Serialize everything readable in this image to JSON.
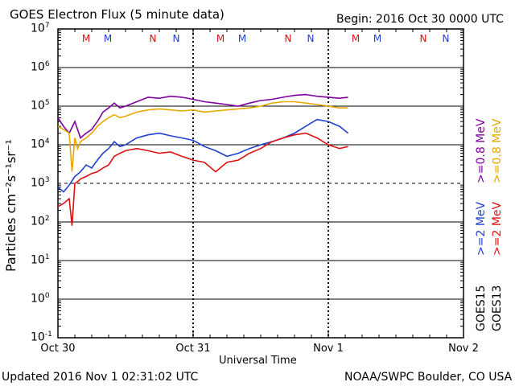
{
  "header": {
    "title": "GOES Electron Flux (5 minute data)",
    "begin": "Begin: 2016 Oct 30 0000 UTC"
  },
  "footer": {
    "updated": "Updated 2016 Nov  1 02:31:02 UTC",
    "credit": "NOAA/SWPC Boulder, CO USA"
  },
  "legend": {
    "goes15": "GOES15",
    "goes13": "GOES13",
    "entries": [
      {
        "text": ">=0.8 MeV",
        "color": "#7f00a0"
      },
      {
        "text": ">=0.8 MeV",
        "color": "#e6a800"
      },
      {
        "text": ">=2 MeV",
        "color": "#1f3fd0"
      },
      {
        "text": ">=2 MeV",
        "color": "#dd1111"
      }
    ]
  },
  "markers": [
    {
      "text": "M",
      "color": "#dd1111"
    },
    {
      "text": "M",
      "color": "#1f3fd0"
    },
    {
      "text": "N",
      "color": "#dd1111"
    },
    {
      "text": "N",
      "color": "#1f3fd0"
    },
    {
      "text": "M",
      "color": "#dd1111"
    },
    {
      "text": "M",
      "color": "#1f3fd0"
    },
    {
      "text": "N",
      "color": "#dd1111"
    },
    {
      "text": "N",
      "color": "#1f3fd0"
    },
    {
      "text": "M",
      "color": "#dd1111"
    },
    {
      "text": "M",
      "color": "#1f3fd0"
    },
    {
      "text": "N",
      "color": "#dd1111"
    },
    {
      "text": "N",
      "color": "#1f3fd0"
    }
  ],
  "chart_data": {
    "type": "line",
    "title": "GOES Electron Flux (5 minute data)",
    "xlabel": "Universal Time",
    "ylabel": "Particles cm⁻²s⁻¹sr⁻¹",
    "y_scale": "log",
    "ylim": [
      0.1,
      10000000
    ],
    "y_ticks": [
      {
        "base": "10",
        "exp": "7"
      },
      {
        "base": "10",
        "exp": "6"
      },
      {
        "base": "10",
        "exp": "5"
      },
      {
        "base": "10",
        "exp": "4"
      },
      {
        "base": "10",
        "exp": "3"
      },
      {
        "base": "10",
        "exp": "2"
      },
      {
        "base": "10",
        "exp": "1"
      },
      {
        "base": "10",
        "exp": "0"
      },
      {
        "base": "10",
        "exp": "-1"
      }
    ],
    "x_ticks": [
      "Oct 30",
      "Oct 31",
      "Nov 1",
      "Nov 2"
    ],
    "xlim_hours": [
      0,
      72
    ],
    "grid": true,
    "series": [
      {
        "name": "GOES15 >=0.8 MeV",
        "color": "#7f00a0",
        "x": [
          0,
          1,
          2,
          3,
          4,
          5,
          6,
          7,
          8,
          9,
          10,
          11,
          12,
          14,
          16,
          18,
          20,
          22,
          24,
          26,
          28,
          30,
          32,
          34,
          36,
          38,
          40,
          42,
          44,
          46,
          48,
          50,
          51.5
        ],
        "y": [
          50000,
          30000,
          20000,
          40000,
          15000,
          20000,
          25000,
          40000,
          70000,
          90000,
          120000,
          90000,
          100000,
          130000,
          170000,
          160000,
          180000,
          170000,
          150000,
          130000,
          120000,
          110000,
          100000,
          120000,
          140000,
          150000,
          170000,
          190000,
          200000,
          180000,
          170000,
          160000,
          170000
        ]
      },
      {
        "name": "GOES13 >=0.8 MeV",
        "color": "#e6a800",
        "x": [
          0,
          1,
          2,
          2.5,
          3,
          3.5,
          4,
          5,
          6,
          7,
          8,
          9,
          10,
          11,
          12,
          14,
          16,
          18,
          20,
          22,
          24,
          26,
          28,
          30,
          32,
          34,
          36,
          38,
          40,
          42,
          44,
          46,
          48,
          50,
          51.5
        ],
        "y": [
          30000,
          25000,
          20000,
          2000,
          15000,
          8000,
          12000,
          15000,
          20000,
          30000,
          40000,
          50000,
          60000,
          50000,
          55000,
          70000,
          80000,
          85000,
          80000,
          75000,
          80000,
          70000,
          75000,
          80000,
          85000,
          90000,
          100000,
          120000,
          130000,
          130000,
          120000,
          110000,
          100000,
          90000,
          90000
        ]
      },
      {
        "name": "GOES15 >=2 MeV",
        "color": "#1f3fd0",
        "x": [
          0,
          1,
          2,
          3,
          4,
          5,
          6,
          7,
          8,
          9,
          10,
          11,
          12,
          14,
          16,
          18,
          20,
          22,
          24,
          26,
          28,
          30,
          32,
          34,
          36,
          38,
          40,
          42,
          44,
          46,
          48,
          50,
          51.5
        ],
        "y": [
          800,
          600,
          900,
          1500,
          2000,
          3000,
          2500,
          4000,
          6000,
          8000,
          12000,
          9000,
          10000,
          15000,
          18000,
          20000,
          17000,
          15000,
          13000,
          9000,
          7000,
          5000,
          6000,
          8000,
          10000,
          12000,
          15000,
          20000,
          30000,
          45000,
          40000,
          30000,
          20000
        ]
      },
      {
        "name": "GOES13 >=2 MeV",
        "color": "#dd1111",
        "x": [
          0,
          1,
          2,
          2.5,
          3,
          3.5,
          4,
          5,
          6,
          7,
          8,
          9,
          10,
          11,
          12,
          14,
          16,
          18,
          20,
          22,
          24,
          26,
          28,
          30,
          32,
          34,
          36,
          38,
          40,
          42,
          44,
          46,
          48,
          50,
          51.5
        ],
        "y": [
          250,
          300,
          400,
          80,
          1000,
          1100,
          1300,
          1500,
          1800,
          2000,
          2500,
          3000,
          5000,
          6000,
          7000,
          8000,
          7000,
          6000,
          6500,
          5000,
          4000,
          3500,
          2000,
          3500,
          4000,
          6000,
          8000,
          12000,
          15000,
          18000,
          20000,
          15000,
          10000,
          8000,
          9000
        ]
      }
    ]
  }
}
